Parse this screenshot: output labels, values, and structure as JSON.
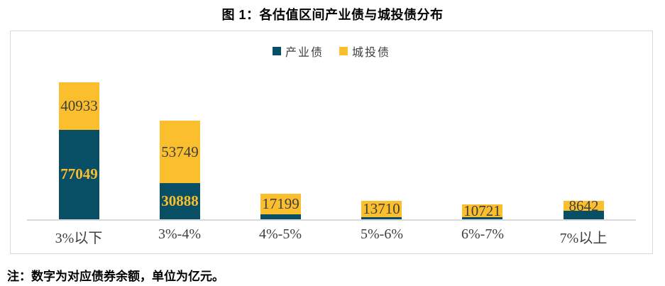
{
  "figure": {
    "title": "图 1：各估值区间产业债与城投债分布",
    "note": "注：数字为对应债券余额，单位为亿元。"
  },
  "chart_data": {
    "type": "bar",
    "stacked": true,
    "title": "图 1：各估值区间产业债与城投债分布",
    "note": "注：数字为对应债券余额，单位为亿元。",
    "unit": "亿元",
    "grid": false,
    "y_axis_shown": false,
    "legend_position": "top-center",
    "categories": [
      "3%以下",
      "3%-4%",
      "4%-5%",
      "5%-6%",
      "6%-7%",
      "7%以上"
    ],
    "series": [
      {
        "name": "产业债",
        "color": "#084F66",
        "label_color": "#F8BE2D",
        "label_bold": true,
        "values": [
          77049,
          30888,
          4500,
          2000,
          1900,
          7100
        ],
        "value_labels": [
          "77049",
          "30888",
          "",
          "",
          "",
          ""
        ]
      },
      {
        "name": "城投债",
        "color": "#FBBF2D",
        "label_color": "#3F3F3F",
        "label_bold": false,
        "values": [
          40933,
          53749,
          17199,
          13710,
          10721,
          8642
        ],
        "value_labels": [
          "40933",
          "53749",
          "17199",
          "13710",
          "10721",
          "8642"
        ]
      }
    ],
    "colors": {
      "axis_line": "#D9D9D9",
      "frame_border": "#D9D9D9",
      "category_label": "#404040"
    }
  }
}
